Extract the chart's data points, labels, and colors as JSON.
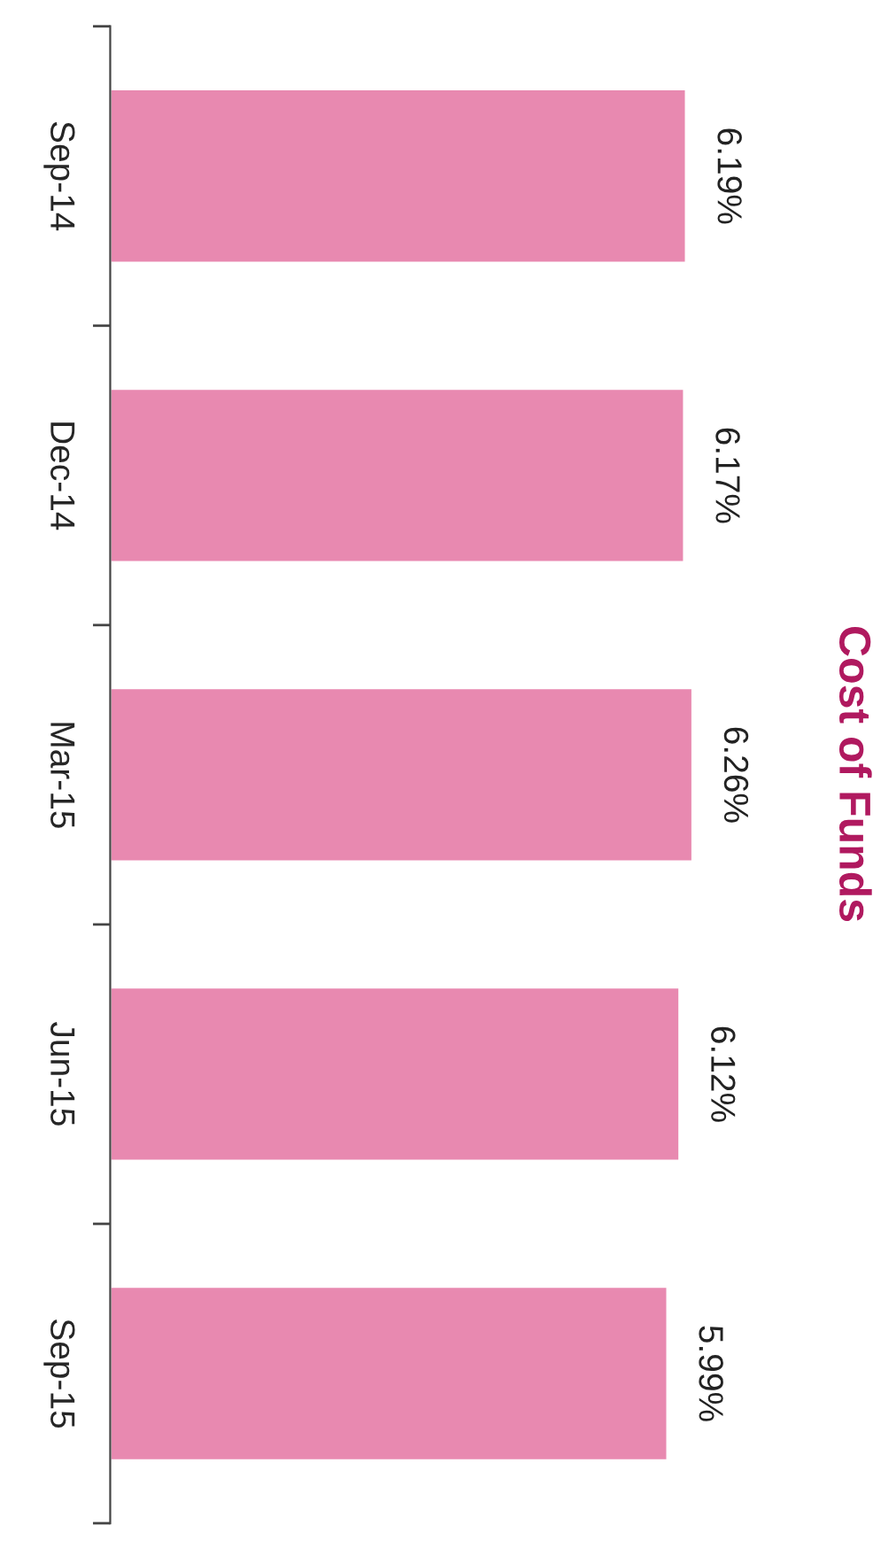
{
  "chart_data": {
    "type": "bar",
    "orientation": "horizontal",
    "title": "Cost of Funds",
    "categories": [
      "Sep-14",
      "Dec-14",
      "Mar-15",
      "Jun-15",
      "Sep-15"
    ],
    "values": [
      6.19,
      6.17,
      6.26,
      6.12,
      5.99
    ],
    "value_labels": [
      "6.19%",
      "6.17%",
      "6.26%",
      "6.12%",
      "5.99%"
    ],
    "color": "#e889b0",
    "grid": false,
    "legend": false
  }
}
